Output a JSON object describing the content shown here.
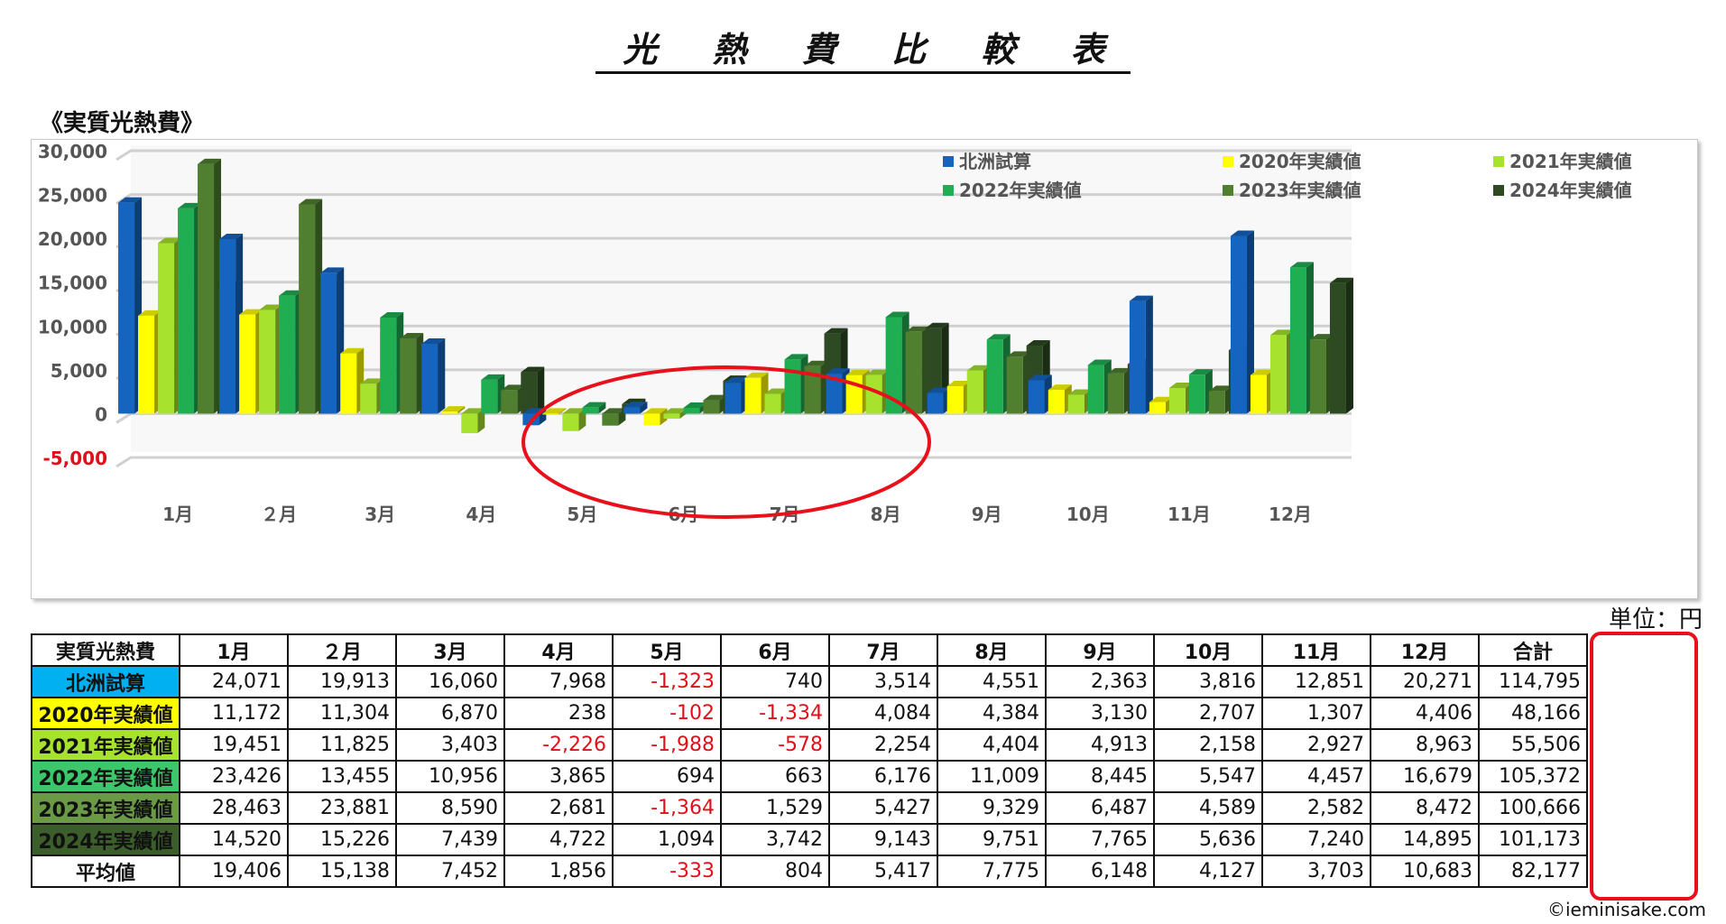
{
  "page": {
    "title": "光 熱 費 比 較 表",
    "subtitle": "《実質光熱費》",
    "unit_label": "単位：円",
    "copyright": "©ieminisake.com"
  },
  "colors": {
    "北洲試算": "#1565c0",
    "2020年実績値": "#ffff00",
    "2021年実績値": "#a6e22e",
    "2022年実績値": "#1fae52",
    "2023年実績値": "#4f7f2f",
    "2024年実績値": "#2d4a22",
    "negative": "#e0101a",
    "highlight_ring": "#e8101a"
  },
  "chart_data": {
    "type": "bar",
    "categories": [
      "1月",
      "２月",
      "3月",
      "4月",
      "5月",
      "6月",
      "7月",
      "8月",
      "9月",
      "10月",
      "11月",
      "12月"
    ],
    "ylim": [
      -5000,
      30000
    ],
    "yticks": [
      "30,000",
      "25,000",
      "20,000",
      "15,000",
      "10,000",
      "5,000",
      "0",
      "-5,000"
    ],
    "ytick_values": [
      30000,
      25000,
      20000,
      15000,
      10000,
      5000,
      0,
      -5000
    ],
    "grid": true,
    "legend_position": "top-right",
    "series": [
      {
        "name": "北洲試算",
        "values": [
          24071,
          19913,
          16060,
          7968,
          -1323,
          740,
          3514,
          4551,
          2363,
          3816,
          12851,
          20271
        ]
      },
      {
        "name": "2020年実績値",
        "values": [
          11172,
          11304,
          6870,
          238,
          -102,
          -1334,
          4084,
          4384,
          3130,
          2707,
          1307,
          4406
        ]
      },
      {
        "name": "2021年実績値",
        "values": [
          19451,
          11825,
          3403,
          -2226,
          -1988,
          -578,
          2254,
          4404,
          4913,
          2158,
          2927,
          8963
        ]
      },
      {
        "name": "2022年実績値",
        "values": [
          23426,
          13455,
          10956,
          3865,
          694,
          663,
          6176,
          11009,
          8445,
          5547,
          4457,
          16679
        ]
      },
      {
        "name": "2023年実績値",
        "values": [
          28463,
          23881,
          8590,
          2681,
          -1364,
          1529,
          5427,
          9329,
          6487,
          4589,
          2582,
          8472
        ]
      },
      {
        "name": "2024年実績値",
        "values": [
          14520,
          15226,
          7439,
          4722,
          1094,
          3742,
          9143,
          9751,
          7765,
          5636,
          7240,
          14895
        ]
      }
    ]
  },
  "table": {
    "header_label": "実質光熱費",
    "months": [
      "1月",
      "２月",
      "3月",
      "4月",
      "5月",
      "6月",
      "7月",
      "8月",
      "9月",
      "10月",
      "11月",
      "12月"
    ],
    "total_label": "合計",
    "rows": [
      {
        "label": "北洲試算",
        "bg": "#00b0f0",
        "cells": [
          "24,071",
          "19,913",
          "16,060",
          "7,968",
          "-1,323",
          "740",
          "3,514",
          "4,551",
          "2,363",
          "3,816",
          "12,851",
          "20,271"
        ],
        "total": "114,795"
      },
      {
        "label": "2020年実績値",
        "bg": "#ffff00",
        "cells": [
          "11,172",
          "11,304",
          "6,870",
          "238",
          "-102",
          "-1,334",
          "4,084",
          "4,384",
          "3,130",
          "2,707",
          "1,307",
          "4,406"
        ],
        "total": "48,166"
      },
      {
        "label": "2021年実績値",
        "bg": "#a6e22e",
        "cells": [
          "19,451",
          "11,825",
          "3,403",
          "-2,226",
          "-1,988",
          "-578",
          "2,254",
          "4,404",
          "4,913",
          "2,158",
          "2,927",
          "8,963"
        ],
        "total": "55,506"
      },
      {
        "label": "2022年実績値",
        "bg": "#3cc86a",
        "cells": [
          "23,426",
          "13,455",
          "10,956",
          "3,865",
          "694",
          "663",
          "6,176",
          "11,009",
          "8,445",
          "5,547",
          "4,457",
          "16,679"
        ],
        "total": "105,372"
      },
      {
        "label": "2023年実績値",
        "bg": "#6a9a45",
        "cells": [
          "28,463",
          "23,881",
          "8,590",
          "2,681",
          "-1,364",
          "1,529",
          "5,427",
          "9,329",
          "6,487",
          "4,589",
          "2,582",
          "8,472"
        ],
        "total": "100,666"
      },
      {
        "label": "2024年実績値",
        "bg": "#3b5e2b",
        "cells": [
          "14,520",
          "15,226",
          "7,439",
          "4,722",
          "1,094",
          "3,742",
          "9,143",
          "9,751",
          "7,765",
          "5,636",
          "7,240",
          "14,895"
        ],
        "total": "101,173"
      },
      {
        "label": "平均値",
        "bg": "#ffffff",
        "cells": [
          "19,406",
          "15,138",
          "7,452",
          "1,856",
          "-333",
          "804",
          "5,417",
          "7,775",
          "6,148",
          "4,127",
          "3,703",
          "10,683"
        ],
        "total": "82,177"
      }
    ]
  }
}
